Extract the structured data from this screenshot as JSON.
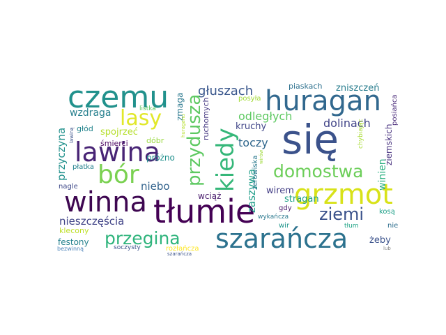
{
  "words": [
    {
      "text": "się",
      "color": "#3b528b"
    },
    {
      "text": "tłumie",
      "color": "#440154"
    },
    {
      "text": "szarańcza",
      "color": "#2c728e"
    },
    {
      "text": "czemu",
      "color": "#21918c"
    },
    {
      "text": "huragan",
      "color": "#31688e"
    },
    {
      "text": "lawina",
      "color": "#482475"
    },
    {
      "text": "winna",
      "color": "#3e0751"
    },
    {
      "text": "grzmot",
      "color": "#d8e219"
    },
    {
      "text": "bór",
      "color": "#7ad151"
    },
    {
      "text": "kiedy",
      "color": "#35b779"
    },
    {
      "text": "przydusza",
      "color": "#5ec962"
    },
    {
      "text": "lasy",
      "color": "#e1e82a"
    },
    {
      "text": "domostwa",
      "color": "#6cce59"
    },
    {
      "text": "przegina",
      "color": "#2fb47c"
    },
    {
      "text": "ziemi",
      "color": "#3b528b"
    },
    {
      "text": "głuszach",
      "color": "#39568c"
    },
    {
      "text": "odległych",
      "color": "#5ec962"
    },
    {
      "text": "dolinach",
      "color": "#404387"
    },
    {
      "text": "toczy",
      "color": "#30678d"
    },
    {
      "text": "niebo",
      "color": "#33638d"
    },
    {
      "text": "nieszczęścia",
      "color": "#414487"
    },
    {
      "text": "wzdraga",
      "color": "#27808e"
    },
    {
      "text": "przyczyna",
      "color": "#21918c"
    },
    {
      "text": "zaszywa",
      "color": "#1f9e89"
    },
    {
      "text": "zniszczeń",
      "color": "#287d8e"
    },
    {
      "text": "winien",
      "color": "#29af7f"
    },
    {
      "text": "kruchy",
      "color": "#404588"
    },
    {
      "text": "stragan",
      "color": "#1fa187"
    },
    {
      "text": "wirem",
      "color": "#433e85"
    },
    {
      "text": "spojrzeć",
      "color": "#b5de2b"
    },
    {
      "text": "festony",
      "color": "#26828e"
    },
    {
      "text": "zmaga",
      "color": "#2a788e"
    },
    {
      "text": "ziemskich",
      "color": "#46307e"
    },
    {
      "text": "wciąż",
      "color": "#481a6c"
    },
    {
      "text": "ruchomych",
      "color": "#453781"
    },
    {
      "text": "piaskach",
      "color": "#2d708e"
    },
    {
      "text": "posiańca",
      "color": "#482878"
    },
    {
      "text": "śmierci",
      "color": "#4e0a63"
    },
    {
      "text": "płatka",
      "color": "#26828e"
    },
    {
      "text": "głód",
      "color": "#25858e"
    },
    {
      "text": "próżno",
      "color": "#21908d"
    },
    {
      "text": "dóbr",
      "color": "#9ad941"
    },
    {
      "text": "nagle",
      "color": "#3e4989"
    },
    {
      "text": "klecony",
      "color": "#bddf26"
    },
    {
      "text": "listka",
      "color": "#5dc863"
    },
    {
      "text": "soczysty",
      "color": "#3b528b"
    },
    {
      "text": "posyła",
      "color": "#a2da37"
    },
    {
      "text": "żerowiska",
      "color": "#2a788e"
    },
    {
      "text": "chybiając",
      "color": "#a8db34"
    },
    {
      "text": "kosą",
      "color": "#1fa088"
    },
    {
      "text": "gdy",
      "color": "#48186a"
    },
    {
      "text": "wir",
      "color": "#1f958b"
    },
    {
      "text": "tłum",
      "color": "#20a486"
    },
    {
      "text": "nie",
      "color": "#2e6e8e"
    },
    {
      "text": "żeby",
      "color": "#3b528b"
    },
    {
      "text": "rozłańcza",
      "color": "#fde725"
    },
    {
      "text": "bezwinną",
      "color": "#4e84ba"
    },
    {
      "text": "lawiną",
      "color": "#3b528b"
    },
    {
      "text": "huraganu",
      "color": "#b5de2b"
    },
    {
      "text": "szarańcza",
      "color": "#3b528b"
    },
    {
      "text": "wykańcza",
      "color": "#2a788e"
    },
    {
      "text": "lub",
      "color": "#8b8b8b"
    },
    {
      "text": "wirów",
      "color": "#9fda3a"
    }
  ]
}
